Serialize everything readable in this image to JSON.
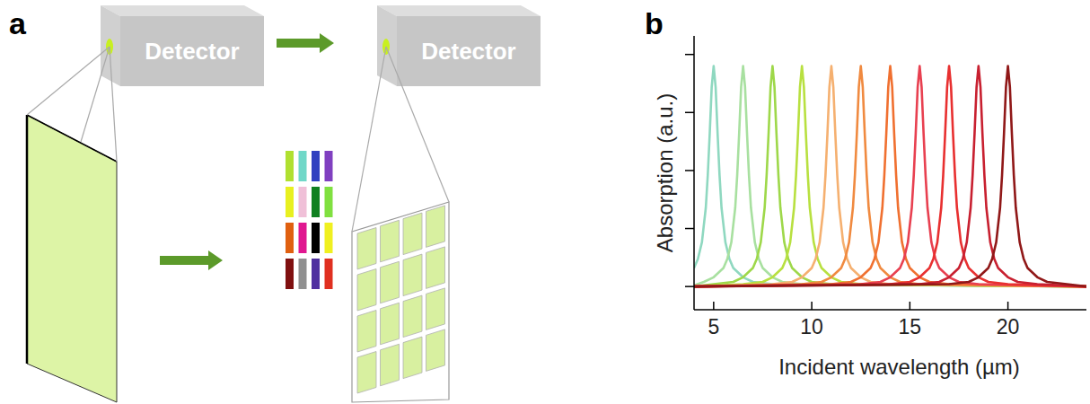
{
  "diagram": {
    "panel_label": "a",
    "detectors": [
      "Detector",
      "Detector"
    ],
    "filter_colors": [
      [
        "#b0e030",
        "#70d8c8",
        "#3040c0",
        "#8040c0"
      ],
      [
        "#e8f020",
        "#f0c0d8",
        "#108020",
        "#80e040"
      ],
      [
        "#e06010",
        "#e01890",
        "#000000",
        "#f0f020"
      ],
      [
        "#801010",
        "#909090",
        "#5030a0",
        "#e03020"
      ]
    ]
  },
  "chart_data": {
    "type": "line",
    "panel_label": "b",
    "x_label": "Incident wavelength (µm)",
    "y_label": "Absorption (a.u.)",
    "xlim": [
      4,
      24
    ],
    "xticks": [
      5,
      10,
      15,
      20
    ],
    "ylim": [
      -0.1,
      1.08
    ],
    "yticks": [
      0,
      0.25,
      0.5,
      0.75,
      1
    ],
    "tick_labels": "x",
    "grid": false,
    "series": [
      {
        "color": "#8fd8c0",
        "x": [
          4,
          4.2,
          4.4,
          4.6,
          4.7,
          4.8,
          4.9,
          5,
          5.1,
          5.2,
          5.3,
          5.4,
          5.6,
          5.8,
          6,
          6.5,
          7,
          8,
          24
        ],
        "values": [
          0.08,
          0.12,
          0.19,
          0.34,
          0.48,
          0.66,
          0.86,
          0.95,
          0.86,
          0.66,
          0.48,
          0.34,
          0.19,
          0.12,
          0.08,
          0.04,
          0.02,
          0.01,
          0
        ]
      },
      {
        "color": "#a8e0a0",
        "x": [
          4,
          4.5,
          5,
          5.5,
          5.7,
          5.9,
          6.1,
          6.2,
          6.3,
          6.4,
          6.5,
          6.6,
          6.7,
          6.8,
          6.9,
          7.1,
          7.3,
          7.5,
          8,
          8.5,
          9.5,
          24
        ],
        "values": [
          0.005,
          0.02,
          0.04,
          0.08,
          0.12,
          0.19,
          0.34,
          0.48,
          0.66,
          0.86,
          0.95,
          0.86,
          0.66,
          0.48,
          0.34,
          0.19,
          0.12,
          0.08,
          0.04,
          0.02,
          0.01,
          0
        ]
      },
      {
        "color": "#9ed84a",
        "x": [
          4,
          5,
          6,
          6.5,
          7,
          7.2,
          7.4,
          7.6,
          7.7,
          7.8,
          7.9,
          8,
          8.1,
          8.2,
          8.3,
          8.4,
          8.6,
          8.8,
          9,
          9.5,
          10,
          11,
          24
        ],
        "values": [
          0,
          0.01,
          0.02,
          0.04,
          0.08,
          0.12,
          0.19,
          0.34,
          0.48,
          0.66,
          0.86,
          0.95,
          0.86,
          0.66,
          0.48,
          0.34,
          0.19,
          0.12,
          0.08,
          0.04,
          0.02,
          0.01,
          0
        ]
      },
      {
        "color": "#b8e040",
        "x": [
          4,
          6.5,
          7.5,
          8,
          8.5,
          8.7,
          8.9,
          9.1,
          9.2,
          9.3,
          9.4,
          9.5,
          9.6,
          9.7,
          9.8,
          9.9,
          10.1,
          10.3,
          10.5,
          11,
          11.5,
          12.5,
          24
        ],
        "values": [
          0,
          0.01,
          0.02,
          0.04,
          0.08,
          0.12,
          0.19,
          0.34,
          0.48,
          0.66,
          0.86,
          0.95,
          0.86,
          0.66,
          0.48,
          0.34,
          0.19,
          0.12,
          0.08,
          0.04,
          0.02,
          0.01,
          0
        ]
      },
      {
        "color": "#f5b070",
        "x": [
          4,
          8,
          9,
          9.5,
          10,
          10.2,
          10.4,
          10.6,
          10.7,
          10.8,
          10.9,
          11,
          11.1,
          11.2,
          11.3,
          11.4,
          11.6,
          11.8,
          12,
          12.5,
          13,
          14,
          24
        ],
        "values": [
          0,
          0.01,
          0.02,
          0.04,
          0.08,
          0.12,
          0.19,
          0.34,
          0.48,
          0.66,
          0.86,
          0.95,
          0.86,
          0.66,
          0.48,
          0.34,
          0.19,
          0.12,
          0.08,
          0.04,
          0.02,
          0.01,
          0
        ]
      },
      {
        "color": "#f08a40",
        "x": [
          4,
          9.5,
          10.5,
          11,
          11.5,
          11.7,
          11.9,
          12.1,
          12.2,
          12.3,
          12.4,
          12.5,
          12.6,
          12.7,
          12.8,
          12.9,
          13.1,
          13.3,
          13.5,
          14,
          14.5,
          15.5,
          24
        ],
        "values": [
          0,
          0.01,
          0.02,
          0.04,
          0.08,
          0.12,
          0.19,
          0.34,
          0.48,
          0.66,
          0.86,
          0.95,
          0.86,
          0.66,
          0.48,
          0.34,
          0.19,
          0.12,
          0.08,
          0.04,
          0.02,
          0.01,
          0
        ]
      },
      {
        "color": "#f07030",
        "x": [
          4,
          11,
          12,
          12.5,
          13,
          13.2,
          13.4,
          13.6,
          13.7,
          13.8,
          13.9,
          14,
          14.1,
          14.2,
          14.3,
          14.4,
          14.6,
          14.8,
          15,
          15.5,
          16,
          17,
          24
        ],
        "values": [
          0,
          0.01,
          0.02,
          0.04,
          0.08,
          0.12,
          0.19,
          0.34,
          0.48,
          0.66,
          0.86,
          0.95,
          0.86,
          0.66,
          0.48,
          0.34,
          0.19,
          0.12,
          0.08,
          0.04,
          0.02,
          0.01,
          0
        ]
      },
      {
        "color": "#e84050",
        "x": [
          4,
          12.5,
          13.5,
          14,
          14.5,
          14.7,
          14.9,
          15.1,
          15.2,
          15.3,
          15.4,
          15.5,
          15.6,
          15.7,
          15.8,
          15.9,
          16.1,
          16.3,
          16.5,
          17,
          17.5,
          18.5,
          24
        ],
        "values": [
          0,
          0.01,
          0.02,
          0.04,
          0.08,
          0.12,
          0.19,
          0.34,
          0.48,
          0.66,
          0.86,
          0.95,
          0.86,
          0.66,
          0.48,
          0.34,
          0.19,
          0.12,
          0.08,
          0.04,
          0.02,
          0.01,
          0
        ]
      },
      {
        "color": "#e83030",
        "x": [
          4,
          14,
          15,
          15.5,
          16,
          16.2,
          16.4,
          16.6,
          16.7,
          16.8,
          16.9,
          17,
          17.1,
          17.2,
          17.3,
          17.4,
          17.6,
          17.8,
          18,
          18.5,
          19,
          20,
          24
        ],
        "values": [
          0,
          0.01,
          0.02,
          0.04,
          0.08,
          0.12,
          0.19,
          0.34,
          0.48,
          0.66,
          0.86,
          0.95,
          0.86,
          0.66,
          0.48,
          0.34,
          0.19,
          0.12,
          0.08,
          0.04,
          0.02,
          0.01,
          0
        ]
      },
      {
        "color": "#c82030",
        "x": [
          4,
          15.5,
          16.5,
          17,
          17.5,
          17.7,
          17.9,
          18.1,
          18.2,
          18.3,
          18.4,
          18.5,
          18.6,
          18.7,
          18.8,
          18.9,
          19.1,
          19.3,
          19.5,
          20,
          20.5,
          21.5,
          24
        ],
        "values": [
          0,
          0.01,
          0.02,
          0.04,
          0.08,
          0.12,
          0.19,
          0.34,
          0.48,
          0.66,
          0.86,
          0.95,
          0.86,
          0.66,
          0.48,
          0.34,
          0.19,
          0.12,
          0.08,
          0.04,
          0.02,
          0.01,
          0
        ]
      },
      {
        "color": "#901818",
        "x": [
          4,
          17,
          18,
          18.5,
          19,
          19.2,
          19.4,
          19.6,
          19.7,
          19.8,
          19.9,
          20,
          20.1,
          20.2,
          20.3,
          20.4,
          20.6,
          20.8,
          21,
          21.5,
          22,
          23,
          24
        ],
        "values": [
          0,
          0.01,
          0.02,
          0.04,
          0.08,
          0.12,
          0.19,
          0.34,
          0.48,
          0.66,
          0.86,
          0.95,
          0.86,
          0.66,
          0.48,
          0.34,
          0.19,
          0.12,
          0.08,
          0.04,
          0.02,
          0.01,
          0
        ]
      }
    ]
  }
}
